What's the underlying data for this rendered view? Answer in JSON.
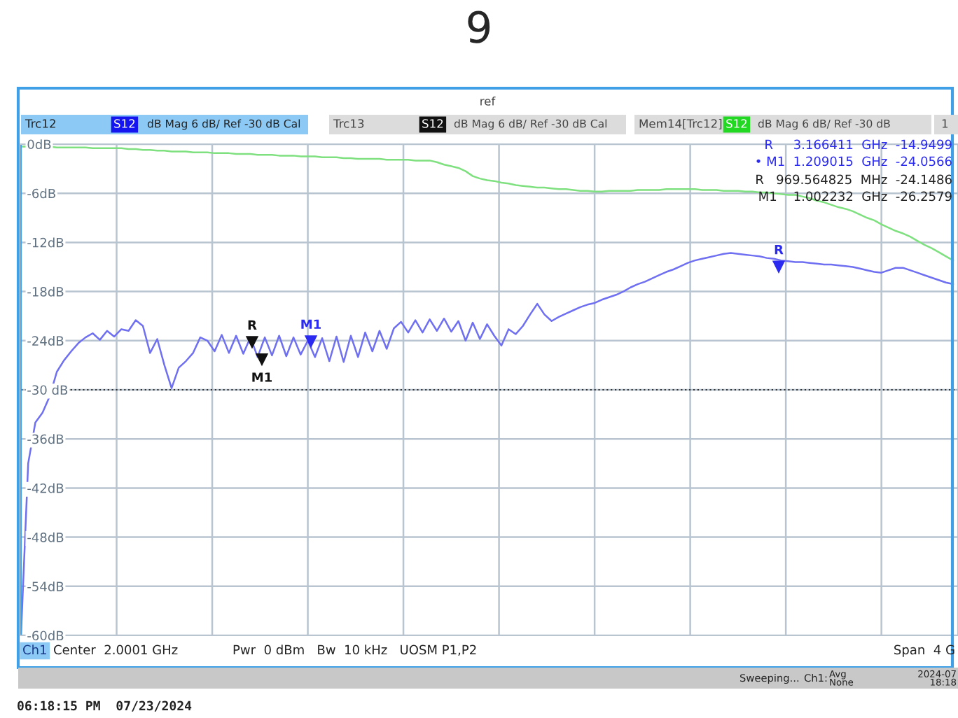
{
  "chart_data": {
    "type": "line",
    "title": "9",
    "subtitle": "ref",
    "categories": [
      null,
      null,
      null,
      null,
      null,
      null,
      null,
      null,
      null,
      null,
      null,
      null,
      null,
      null,
      null,
      null,
      null,
      null,
      null,
      null,
      null,
      null,
      null,
      null,
      null,
      null,
      null,
      null,
      null,
      null,
      null,
      null,
      null,
      null,
      null,
      null,
      null,
      null,
      null,
      null,
      null,
      null,
      null,
      null,
      null,
      null,
      null,
      null,
      null,
      null,
      null,
      null,
      null,
      null,
      null,
      null,
      null,
      null,
      null,
      null,
      null,
      null,
      null,
      null,
      null,
      null,
      null,
      null,
      null,
      null,
      null,
      null,
      null,
      null,
      null,
      null,
      null,
      null,
      null,
      null,
      null,
      null,
      null,
      null,
      null,
      null,
      null,
      null,
      null,
      null,
      null,
      null,
      null,
      null,
      null,
      null,
      null,
      null,
      null,
      null,
      null,
      null,
      null,
      null,
      null,
      null,
      null,
      null,
      null,
      null,
      null,
      null,
      null,
      null,
      null,
      null,
      null,
      null,
      null,
      null,
      null,
      null,
      null,
      null,
      null,
      null,
      null,
      null,
      null,
      null,
      null
    ],
    "ylim": [
      -60,
      0
    ],
    "yticks": [
      {
        "value": 0,
        "label": "0dB"
      },
      {
        "value": -6,
        "label": "-6dB"
      },
      {
        "value": -12,
        "label": "-12dB"
      },
      {
        "value": -18,
        "label": "-18dB"
      },
      {
        "value": -24,
        "label": "-24dB"
      },
      {
        "value": -30,
        "label": "-30 dB"
      },
      {
        "value": -36,
        "label": "-36dB"
      },
      {
        "value": -42,
        "label": "-42dB"
      },
      {
        "value": -48,
        "label": "-48dB"
      },
      {
        "value": -54,
        "label": "-54dB"
      },
      {
        "value": -60,
        "label": "-60dB"
      }
    ],
    "grid": true,
    "ref_lines": [
      {
        "axis": "y",
        "value": -30,
        "color": "#333333",
        "line_style": "dotted"
      }
    ],
    "series": [
      {
        "color": "#6f6ff2",
        "values": [
          -60,
          -39,
          -34,
          -32.8,
          -30.8,
          -27.8,
          -26.4,
          -25.3,
          -24.3,
          -23.6,
          -23.1,
          -23.9,
          -22.8,
          -23.5,
          -22.6,
          -22.8,
          -21.5,
          -22.2,
          -25.5,
          -23.8,
          -27.0,
          -29.8,
          -27.3,
          -26.5,
          -25.5,
          -23.6,
          -24.0,
          -25.3,
          -23.3,
          -25.5,
          -23.4,
          -25.6,
          -23.6,
          -26.0,
          -23.6,
          -25.8,
          -23.4,
          -25.9,
          -23.6,
          -25.7,
          -24.0,
          -26.0,
          -23.7,
          -26.5,
          -23.5,
          -26.6,
          -23.4,
          -26.0,
          -23.0,
          -25.3,
          -22.8,
          -25.0,
          -22.5,
          -21.7,
          -23.0,
          -21.5,
          -23.0,
          -21.4,
          -22.8,
          -21.3,
          -22.9,
          -21.6,
          -24.0,
          -21.8,
          -23.8,
          -22.0,
          -23.4,
          -24.6,
          -22.6,
          -23.2,
          -22.2,
          -20.8,
          -19.5,
          -20.8,
          -21.6,
          -21.1,
          -20.7,
          -20.3,
          -19.9,
          -19.6,
          -19.4,
          -19.0,
          -18.7,
          -18.4,
          -18.0,
          -17.5,
          -17.1,
          -16.8,
          -16.4,
          -16.0,
          -15.6,
          -15.3,
          -14.9,
          -14.5,
          -14.2,
          -14.0,
          -13.8,
          -13.6,
          -13.4,
          -13.3,
          -13.4,
          -13.5,
          -13.6,
          -13.7,
          -13.9,
          -14.0,
          -14.2,
          -14.3,
          -14.4,
          -14.4,
          -14.5,
          -14.6,
          -14.7,
          -14.7,
          -14.8,
          -14.9,
          -15.0,
          -15.2,
          -15.4,
          -15.6,
          -15.7,
          -15.4,
          -15.1,
          -15.1,
          -15.4,
          -15.7,
          -16.0,
          -16.3,
          -16.6,
          -16.9,
          -17.1
        ]
      },
      {
        "color": "#7ee07e",
        "values": [
          -0.3,
          -0.3,
          -0.3,
          -0.3,
          -0.3,
          -0.4,
          -0.4,
          -0.4,
          -0.4,
          -0.4,
          -0.5,
          -0.5,
          -0.5,
          -0.5,
          -0.5,
          -0.6,
          -0.6,
          -0.7,
          -0.7,
          -0.8,
          -0.8,
          -0.9,
          -0.9,
          -0.9,
          -1.0,
          -1.0,
          -1.0,
          -1.1,
          -1.1,
          -1.1,
          -1.2,
          -1.2,
          -1.2,
          -1.3,
          -1.3,
          -1.3,
          -1.4,
          -1.4,
          -1.4,
          -1.5,
          -1.5,
          -1.5,
          -1.6,
          -1.6,
          -1.6,
          -1.7,
          -1.7,
          -1.8,
          -1.8,
          -1.8,
          -1.8,
          -1.9,
          -1.9,
          -1.9,
          -1.9,
          -2.0,
          -2.0,
          -2.0,
          -2.2,
          -2.5,
          -2.7,
          -2.9,
          -3.3,
          -3.9,
          -4.2,
          -4.4,
          -4.5,
          -4.7,
          -4.8,
          -5.0,
          -5.1,
          -5.2,
          -5.3,
          -5.3,
          -5.4,
          -5.5,
          -5.5,
          -5.6,
          -5.7,
          -5.7,
          -5.8,
          -5.8,
          -5.7,
          -5.7,
          -5.7,
          -5.7,
          -5.6,
          -5.6,
          -5.6,
          -5.6,
          -5.5,
          -5.5,
          -5.5,
          -5.5,
          -5.5,
          -5.6,
          -5.6,
          -5.6,
          -5.7,
          -5.7,
          -5.7,
          -5.8,
          -5.8,
          -5.9,
          -5.9,
          -6.0,
          -6.1,
          -6.2,
          -6.2,
          -6.4,
          -6.6,
          -6.9,
          -7.1,
          -7.4,
          -7.7,
          -7.9,
          -8.2,
          -8.6,
          -9.0,
          -9.3,
          -9.8,
          -10.2,
          -10.6,
          -10.9,
          -11.3,
          -11.8,
          -12.3,
          -12.7,
          -13.2,
          -13.7,
          -14.2
        ]
      }
    ],
    "annotations": [
      "Trc12",
      "S12",
      "dB Mag 6 dB/ Ref -30 dB Cal",
      "Trc13",
      "S12",
      "dB Mag 6 dB/ Ref -30 dB Cal",
      "Mem14[Trc12]",
      "S12",
      "dB Mag 6 dB/ Ref -30 dB",
      "1",
      "R     3.166411  GHz  -14.9499",
      "• M1  1.209015  GHz  -24.0566",
      "R   969.564825  MHz  -24.1486",
      "M1    1.002232  GHz  -26.2579",
      "Ch1",
      "Center  2.0001 GHz",
      "Pwr  0 dBm   Bw  10 kHz   UOSM P1,P2",
      "Span  4 G",
      "Sweeping...",
      "Ch1:",
      "Avg\nNone",
      "2024-07\n18:18",
      "06:18:15 PM  07/23/2024",
      {
        "text": "R",
        "y": -14.9499
      },
      {
        "text": "M1",
        "y": -24.0566
      },
      {
        "text": "R",
        "y": -24.1486
      },
      {
        "text": "M1",
        "y": -26.2579
      }
    ]
  }
}
